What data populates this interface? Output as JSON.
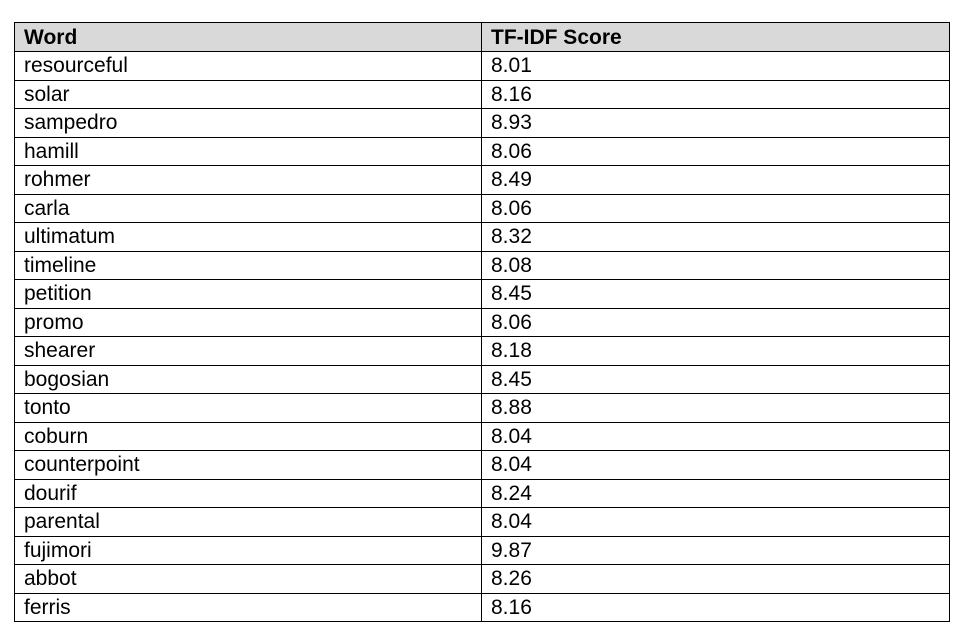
{
  "table": {
    "headers": [
      "Word",
      "TF-IDF Score"
    ],
    "header_background": "#d9d9d9",
    "rows": [
      [
        "resourceful",
        "8.01"
      ],
      [
        "solar",
        "8.16"
      ],
      [
        "sampedro",
        "8.93"
      ],
      [
        "hamill",
        "8.06"
      ],
      [
        "rohmer",
        "8.49"
      ],
      [
        "carla",
        "8.06"
      ],
      [
        "ultimatum",
        "8.32"
      ],
      [
        "timeline",
        "8.08"
      ],
      [
        "petition",
        "8.45"
      ],
      [
        "promo",
        "8.06"
      ],
      [
        "shearer",
        "8.18"
      ],
      [
        "bogosian",
        "8.45"
      ],
      [
        "tonto",
        "8.88"
      ],
      [
        "coburn",
        "8.04"
      ],
      [
        "counterpoint",
        "8.04"
      ],
      [
        "dourif",
        "8.24"
      ],
      [
        "parental",
        "8.04"
      ],
      [
        "fujimori",
        "9.87"
      ],
      [
        "abbot",
        "8.26"
      ],
      [
        "ferris",
        "8.16"
      ]
    ]
  }
}
